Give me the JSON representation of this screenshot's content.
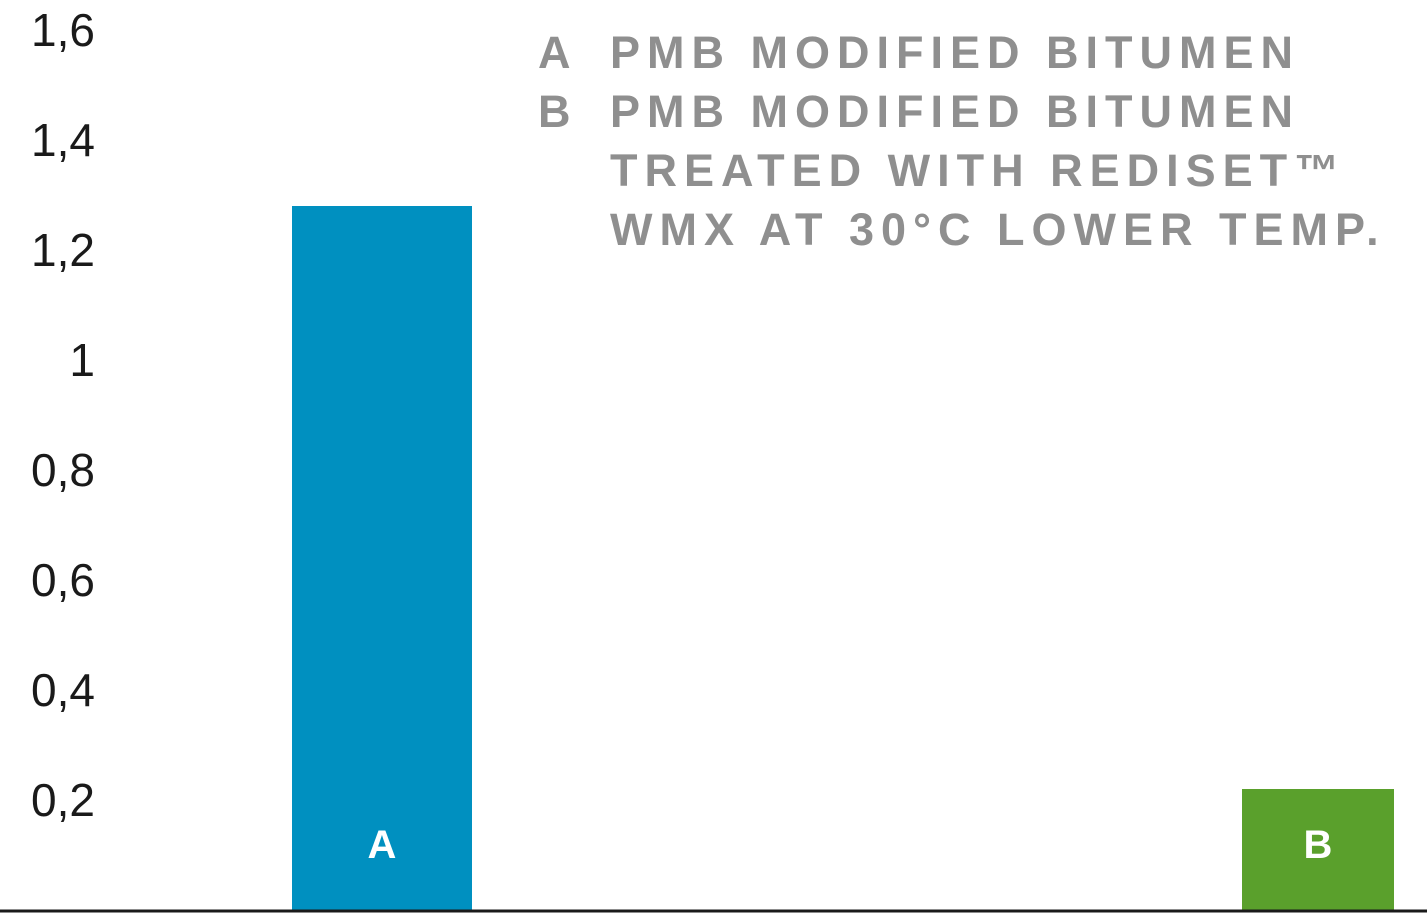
{
  "chart_data": {
    "type": "bar",
    "categories": [
      "A",
      "B"
    ],
    "values": [
      1.28,
      0.22
    ],
    "colors": [
      "#0090c0",
      "#5aa02c"
    ],
    "yticks": [
      "0,2",
      "0,4",
      "0,6",
      "0,8",
      "1",
      "1,2",
      "1,4",
      "1,6"
    ],
    "ytick_values": [
      0.2,
      0.4,
      0.6,
      0.8,
      1.0,
      1.2,
      1.4,
      1.6
    ],
    "ylim": [
      0,
      1.6
    ],
    "grid": false,
    "legend_position": "top-right",
    "legend": [
      {
        "key": "A",
        "lines": [
          "PMB MODIFIED BITUMEN"
        ]
      },
      {
        "key": "B",
        "lines": [
          "PMB MODIFIED BITUMEN",
          "TREATED WITH REDISET™",
          "WMX AT 30°C LOWER TEMP."
        ]
      }
    ]
  }
}
